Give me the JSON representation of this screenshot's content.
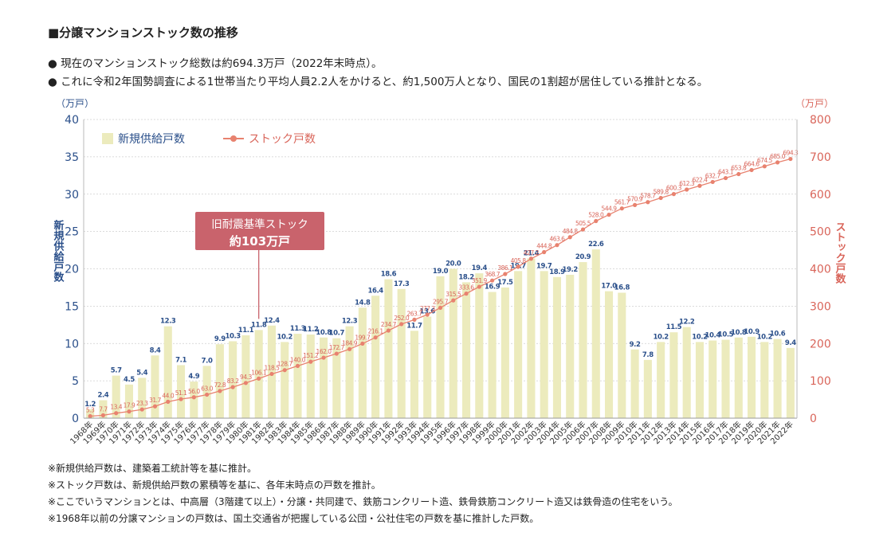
{
  "title": "■分譲マンションストック数の推移",
  "bullets": [
    "● 現在のマンションストック総数は約694.3万戸（2022年末時点）。",
    "● これに令和2年国勢調査による1世帯当たり平均人員2.2人をかけると、約1,500万人となり、国民の1割超が居住している推計となる。"
  ],
  "notes": [
    "※新規供給戸数は、建築着工統計等を基に推計。",
    "※ストック戸数は、新規供給戸数の累積等を基に、各年末時点の戸数を推計。",
    "※ここでいうマンションとは、中高層（3階建て以上）・分譲・共同建で、鉄筋コンクリート造、鉄骨鉄筋コンクリート造又は鉄骨造の住宅をいう。",
    "※1968年以前の分譲マンションの戸数は、国土交通省が把握している公団・公社住宅の戸数を基に推計した戸数。"
  ],
  "callout": {
    "line1": "旧耐震基準ストック",
    "line2": "約103万戸"
  },
  "colors": {
    "bar": "#ecebbd",
    "line": "#e8826f",
    "callout": "#c9636c",
    "left_axis": "#2a4f8a",
    "right_axis": "#d9655a"
  },
  "chart_data": {
    "type": "bar+line",
    "categories": [
      "1968年",
      "1969年",
      "1970年",
      "1971年",
      "1972年",
      "1973年",
      "1974年",
      "1975年",
      "1976年",
      "1977年",
      "1978年",
      "1979年",
      "1980年",
      "1981年",
      "1982年",
      "1983年",
      "1984年",
      "1985年",
      "1986年",
      "1987年",
      "1988年",
      "1989年",
      "1990年",
      "1991年",
      "1992年",
      "1993年",
      "1994年",
      "1995年",
      "1996年",
      "1997年",
      "1998年",
      "1999年",
      "2000年",
      "2001年",
      "2002年",
      "2003年",
      "2004年",
      "2005年",
      "2006年",
      "2007年",
      "2008年",
      "2009年",
      "2010年",
      "2011年",
      "2012年",
      "2013年",
      "2014年",
      "2015年",
      "2016年",
      "2017年",
      "2018年",
      "2019年",
      "2020年",
      "2021年",
      "2022年"
    ],
    "series": [
      {
        "name": "新規供給戸数",
        "type": "bar",
        "axis": "left",
        "values": [
          1.2,
          2.4,
          5.7,
          4.5,
          5.4,
          8.4,
          12.3,
          7.1,
          4.9,
          7.0,
          9.9,
          10.3,
          11.1,
          11.8,
          12.4,
          10.2,
          11.3,
          11.2,
          10.8,
          10.7,
          12.3,
          14.8,
          16.4,
          18.6,
          17.3,
          11.7,
          13.6,
          19.0,
          20.0,
          18.2,
          19.4,
          16.9,
          17.5,
          19.7,
          21.4,
          19.7,
          18.9,
          19.2,
          20.9,
          22.6,
          17.0,
          16.8,
          9.2,
          7.8,
          10.2,
          11.5,
          12.2,
          10.2,
          10.4,
          10.5,
          10.8,
          10.9,
          10.2,
          10.6,
          9.4
        ]
      },
      {
        "name": "ストック戸数",
        "type": "line",
        "axis": "right",
        "values": [
          5.3,
          7.7,
          13.4,
          17.9,
          23.3,
          31.7,
          44.0,
          51.1,
          56.0,
          63.0,
          72.8,
          83.2,
          94.3,
          106.1,
          118.5,
          128.7,
          140.0,
          151.2,
          162.0,
          172.7,
          184.9,
          199.7,
          216.1,
          234.7,
          252.0,
          263.7,
          277.3,
          295.7,
          315.5,
          333.6,
          351.9,
          368.7,
          386.1,
          405.8,
          427.2,
          444.8,
          463.6,
          484.8,
          505.5,
          528.0,
          544.9,
          561.7,
          570.9,
          578.7,
          589.8,
          600.3,
          612.3,
          622.4,
          632.7,
          643.1,
          653.8,
          664.6,
          674.5,
          685.0,
          694.3
        ]
      }
    ],
    "left_axis": {
      "unit": "（万戸）",
      "label": "新規供給戸数",
      "min": 0,
      "max": 40,
      "ticks": [
        "0",
        "5",
        "10",
        "15",
        "20",
        "25",
        "30",
        "35",
        "40"
      ]
    },
    "right_axis": {
      "unit": "（万戸）",
      "label": "ストック戸数",
      "min": 0,
      "max": 800,
      "ticks": [
        "0",
        "100",
        "200",
        "300",
        "400",
        "500",
        "600",
        "700",
        "800"
      ]
    },
    "legend": [
      "新規供給戸数",
      "ストック戸数"
    ]
  }
}
